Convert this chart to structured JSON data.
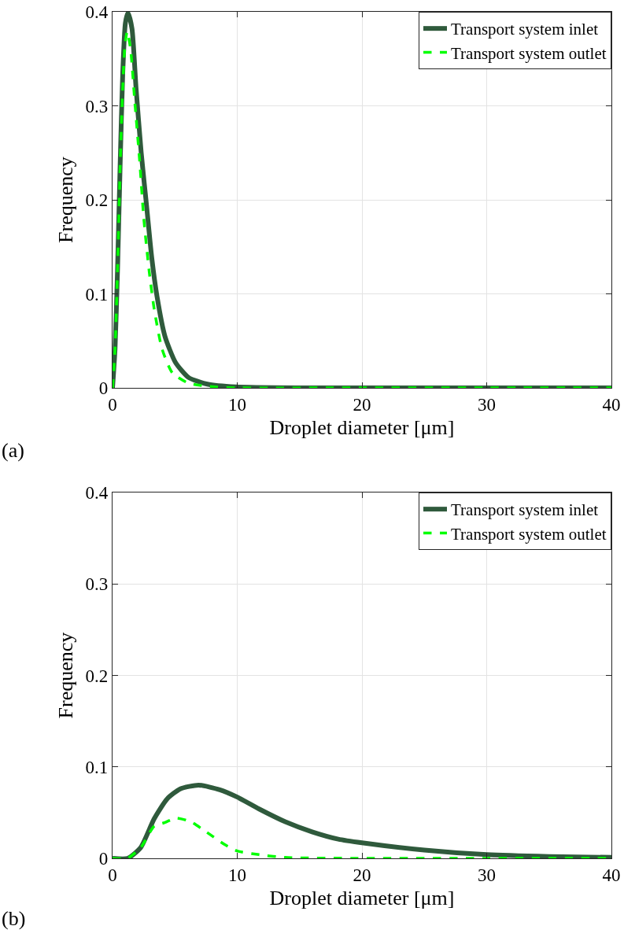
{
  "chart_data": [
    {
      "type": "line",
      "xlabel": "Droplet diameter [μm]",
      "ylabel": "Frequency",
      "xlim": [
        0,
        40
      ],
      "ylim": [
        0,
        0.4
      ],
      "xticks": [
        0,
        10,
        20,
        30,
        40
      ],
      "yticks": [
        0,
        0.1,
        0.2,
        0.3,
        0.4
      ],
      "grid": true,
      "legend": "top right",
      "annotations": [
        "(a)"
      ],
      "series": [
        {
          "name": "Transport system inlet",
          "color": "#2f5a3c",
          "line_style": "solid",
          "x": [
            0,
            0.2,
            0.4,
            0.61,
            0.82,
            1.03,
            1.24,
            1.56,
            1.88,
            2.3,
            2.72,
            3.14,
            3.57,
            4.2,
            5.05,
            6.1,
            7.6,
            9.9,
            15,
            20,
            30,
            40
          ],
          "values": [
            0,
            0.041,
            0.125,
            0.237,
            0.335,
            0.388,
            0.399,
            0.382,
            0.32,
            0.25,
            0.195,
            0.139,
            0.097,
            0.055,
            0.027,
            0.011,
            0.004,
            0.001,
            0,
            0,
            0,
            0
          ]
        },
        {
          "name": "Transport system outlet",
          "color": "#00ff00",
          "line_style": "dashed",
          "x": [
            0,
            0.2,
            0.4,
            0.61,
            0.82,
            1.0,
            1.18,
            1.45,
            1.77,
            2.2,
            2.5,
            2.93,
            3.35,
            3.98,
            4.8,
            6.1,
            8.2,
            10,
            20,
            30,
            40
          ],
          "values": [
            0,
            0.04,
            0.125,
            0.235,
            0.32,
            0.365,
            0.379,
            0.36,
            0.307,
            0.237,
            0.181,
            0.125,
            0.083,
            0.041,
            0.016,
            0.005,
            0.001,
            0,
            0,
            0,
            0
          ]
        }
      ]
    },
    {
      "type": "line",
      "xlabel": "Droplet diameter [μm]",
      "ylabel": "Frequency",
      "xlim": [
        0,
        40
      ],
      "ylim": [
        0,
        0.4
      ],
      "xticks": [
        0,
        10,
        20,
        30,
        40
      ],
      "yticks": [
        0,
        0.1,
        0.2,
        0.3,
        0.4
      ],
      "grid": true,
      "legend": "top right",
      "annotations": [
        "(b)"
      ],
      "series": [
        {
          "name": "Transport system inlet",
          "color": "#2f5a3c",
          "line_style": "solid",
          "x": [
            0,
            1.22,
            2.27,
            3.33,
            4.38,
            5.43,
            6.9,
            8.6,
            10,
            11.75,
            13.85,
            16,
            18.1,
            20,
            25,
            30,
            35,
            40
          ],
          "values": [
            0,
            0,
            0.012,
            0.043,
            0.065,
            0.076,
            0.08,
            0.075,
            0.067,
            0.054,
            0.04,
            0.029,
            0.021,
            0.017,
            0.009,
            0.004,
            0.002,
            0.001
          ]
        },
        {
          "name": "Transport system outlet",
          "color": "#00ff00",
          "line_style": "dashed",
          "x": [
            0,
            1.2,
            2.27,
            3.33,
            4.17,
            5.1,
            6.27,
            7.5,
            9,
            10,
            11.75,
            13.85,
            20,
            30,
            40
          ],
          "values": [
            0,
            0,
            0.012,
            0.035,
            0.039,
            0.044,
            0.04,
            0.029,
            0.015,
            0.008,
            0.004,
            0.001,
            0,
            0,
            0
          ]
        }
      ]
    }
  ]
}
